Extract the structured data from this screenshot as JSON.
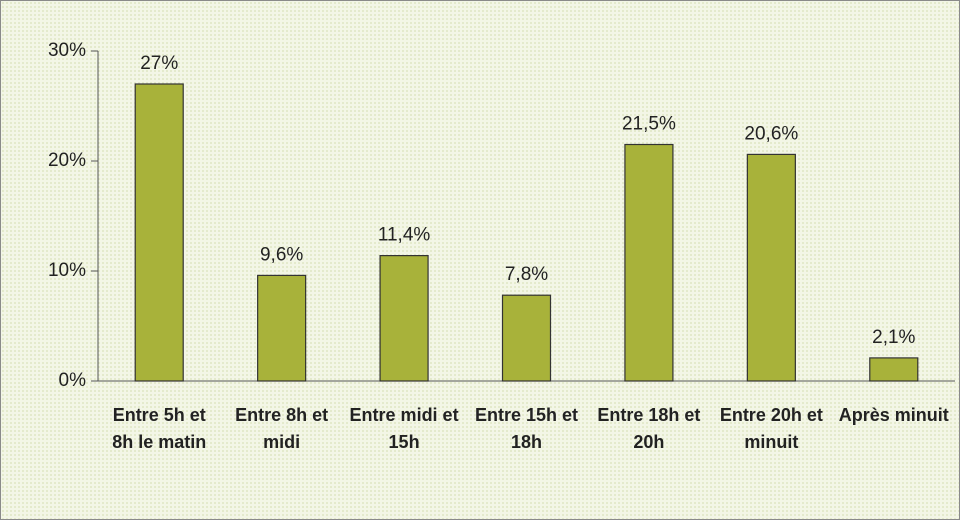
{
  "chart_data": {
    "type": "bar",
    "categories": [
      "Entre 5h et 8h le matin",
      "Entre 8h et midi",
      "Entre midi et 15h",
      "Entre 15h et 18h",
      "Entre 18h et 20h",
      "Entre 20h et minuit",
      "Après minuit"
    ],
    "values": [
      27,
      9.6,
      11.4,
      7.8,
      21.5,
      20.6,
      2.1
    ],
    "value_labels": [
      "27%",
      "9,6%",
      "11,4%",
      "7,8%",
      "21,5%",
      "20,6%",
      "2,1%"
    ],
    "color": "#a8b23a",
    "ylim": [
      0,
      30
    ],
    "yticks": [
      {
        "value": 0,
        "label": "0%"
      },
      {
        "value": 10,
        "label": "10%"
      },
      {
        "value": 20,
        "label": "20%"
      },
      {
        "value": 30,
        "label": "30%"
      }
    ]
  }
}
